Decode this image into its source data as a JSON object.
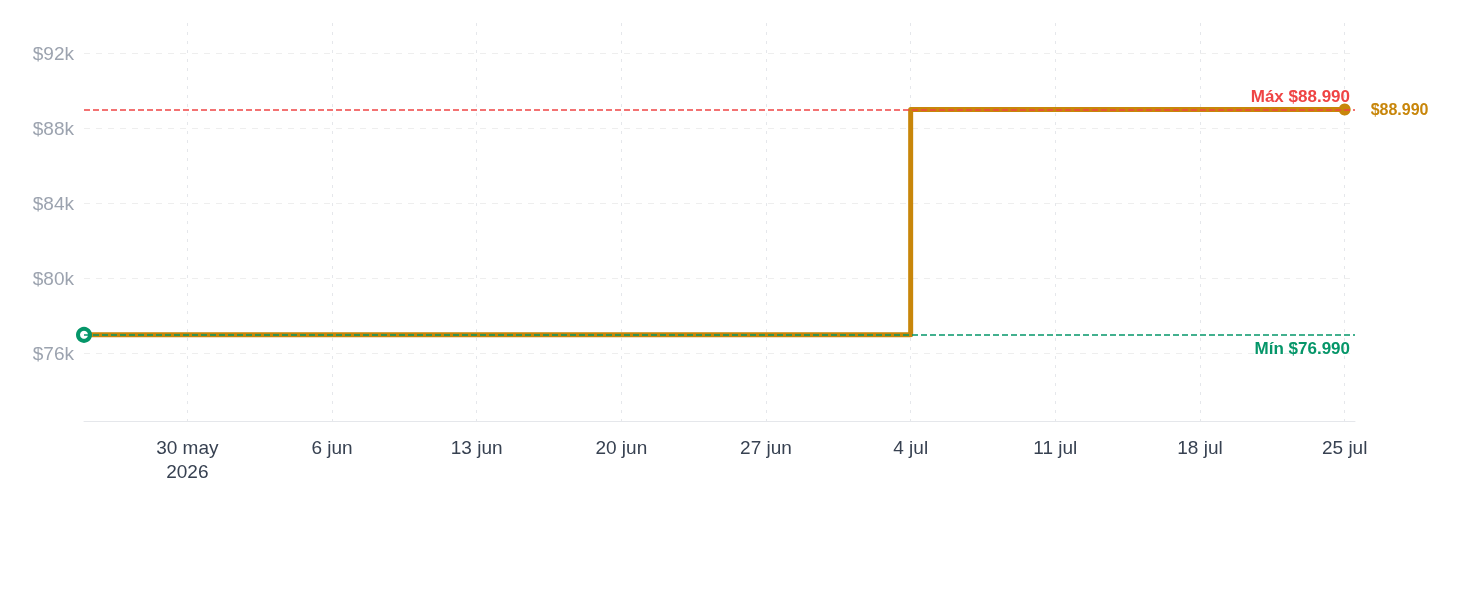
{
  "chart_data": {
    "type": "step",
    "x": [
      "2026-05-25",
      "2026-07-04",
      "2026-07-25"
    ],
    "series": [
      {
        "color": "#c8860a",
        "values": [
          76990,
          88990,
          88990
        ],
        "value_labels": [
          null,
          null,
          "$88.990"
        ]
      }
    ],
    "xlim": [
      "2026-05-25",
      "2026-07-25T12:00"
    ],
    "xticks": [
      {
        "value": "2026-05-30",
        "label": "30 may\n2026"
      },
      {
        "value": "2026-06-06",
        "label": "6 jun"
      },
      {
        "value": "2026-06-13",
        "label": "13 jun"
      },
      {
        "value": "2026-06-20",
        "label": "20 jun"
      },
      {
        "value": "2026-06-27",
        "label": "27 jun"
      },
      {
        "value": "2026-07-04",
        "label": "4 jul"
      },
      {
        "value": "2026-07-11",
        "label": "11 jul"
      },
      {
        "value": "2026-07-18",
        "label": "18 jul"
      },
      {
        "value": "2026-07-25",
        "label": "25 jul"
      }
    ],
    "ylim": [
      72400,
      93600
    ],
    "yticks": [
      {
        "value": 76000,
        "label": "$76k"
      },
      {
        "value": 80000,
        "label": "$80k"
      },
      {
        "value": 84000,
        "label": "$84k"
      },
      {
        "value": 88000,
        "label": "$88k"
      },
      {
        "value": 92000,
        "label": "$92k"
      }
    ],
    "ref_lines": [
      {
        "axis": "y",
        "value": 88990,
        "label": "Máx $88.990",
        "color": "#ef4444",
        "line_style": "dashed"
      },
      {
        "axis": "y",
        "value": 76990,
        "label": "Mín $76.990",
        "color": "#059669",
        "line_style": "dashed"
      }
    ],
    "grid": true,
    "marker": "circle",
    "line_style": "solid"
  }
}
